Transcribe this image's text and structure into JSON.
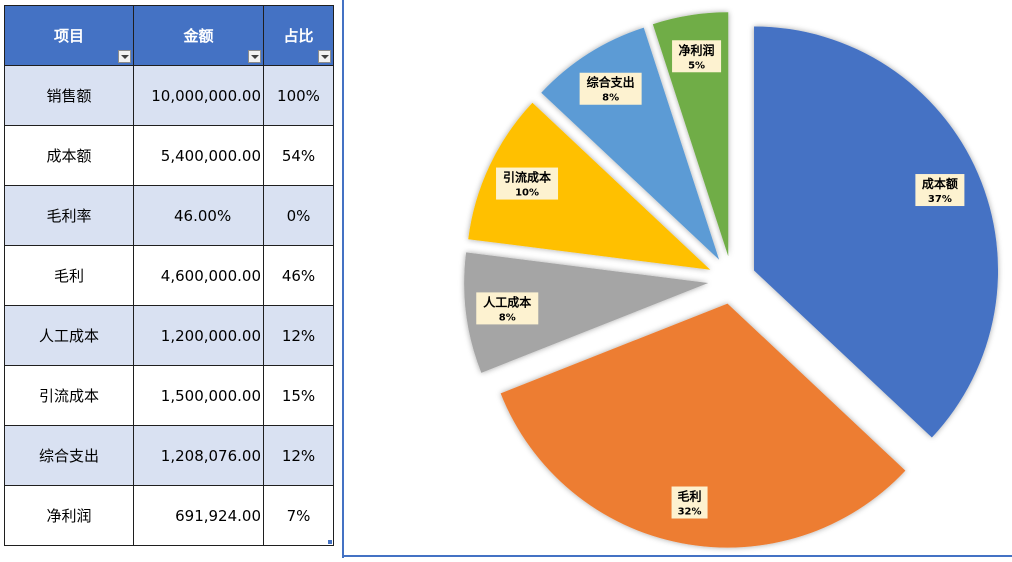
{
  "table": {
    "headers": [
      "项目",
      "金额",
      "占比"
    ],
    "rows": [
      {
        "name": "销售额",
        "amount": "10,000,000.00",
        "pct": "100%"
      },
      {
        "name": "成本额",
        "amount": "5,400,000.00",
        "pct": "54%"
      },
      {
        "name": "毛利率",
        "amount": "46.00%",
        "pct": "0%"
      },
      {
        "name": "毛利",
        "amount": "4,600,000.00",
        "pct": "46%"
      },
      {
        "name": "人工成本",
        "amount": "1,200,000.00",
        "pct": "12%"
      },
      {
        "name": "引流成本",
        "amount": "1,500,000.00",
        "pct": "15%"
      },
      {
        "name": "综合支出",
        "amount": "1,208,076.00",
        "pct": "12%"
      },
      {
        "name": "净利润",
        "amount": "691,924.00",
        "pct": "7%"
      }
    ]
  },
  "chart_data": {
    "type": "pie",
    "categories": [
      "成本额",
      "毛利",
      "人工成本",
      "引流成本",
      "综合支出",
      "净利润"
    ],
    "values": [
      37,
      32,
      8,
      10,
      8,
      5
    ],
    "labels": [
      "37%",
      "32%",
      "8%",
      "10%",
      "8%",
      "5%"
    ],
    "colors": [
      "#4472c4",
      "#ed7d31",
      "#a5a5a5",
      "#ffc000",
      "#5b9bd5",
      "#70ad47"
    ],
    "exploded": true,
    "legend": "none",
    "title": ""
  }
}
